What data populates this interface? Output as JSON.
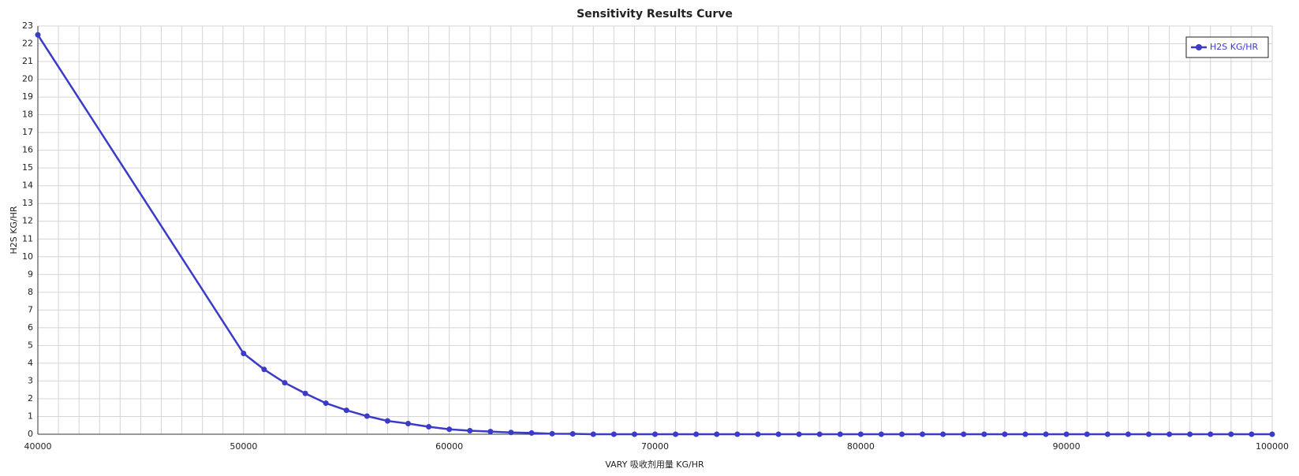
{
  "chart_data": {
    "type": "line",
    "title": "Sensitivity Results Curve",
    "x_label": "VARY   吸收剂用量 KG/HR",
    "y_label": "H2S KG/HR",
    "x": [
      40000,
      50000,
      51000,
      52000,
      53000,
      54000,
      55000,
      56000,
      57000,
      58000,
      59000,
      60000,
      61000,
      62000,
      63000,
      64000,
      65000,
      66000,
      67000,
      68000,
      69000,
      70000,
      71000,
      72000,
      73000,
      74000,
      75000,
      76000,
      77000,
      78000,
      79000,
      80000,
      81000,
      82000,
      83000,
      84000,
      85000,
      86000,
      87000,
      88000,
      89000,
      90000,
      91000,
      92000,
      93000,
      94000,
      95000,
      96000,
      97000,
      98000,
      99000,
      100000
    ],
    "series": [
      {
        "name": "H2S KG/HR",
        "color": "#3b3bc8",
        "values": [
          22.5,
          4.55,
          3.65,
          2.9,
          2.3,
          1.75,
          1.35,
          1.02,
          0.75,
          0.6,
          0.42,
          0.28,
          0.2,
          0.15,
          0.1,
          0.07,
          0.03,
          0.02,
          0,
          0,
          0,
          0,
          0,
          0,
          0,
          0,
          0,
          0,
          0,
          0,
          0,
          0,
          0,
          0,
          0,
          0,
          0,
          0,
          0,
          0,
          0,
          0,
          0,
          0,
          0,
          0,
          0,
          0,
          0,
          0,
          0,
          0
        ]
      }
    ],
    "xlim": [
      40000,
      100000
    ],
    "xticks": [
      40000,
      50000,
      60000,
      70000,
      80000,
      90000,
      100000
    ],
    "x_minor_ticks": [
      41000,
      42000,
      43000,
      44000,
      45000,
      46000,
      47000,
      48000,
      49000,
      51000,
      52000,
      53000,
      54000,
      55000,
      56000,
      57000,
      58000,
      59000,
      61000,
      62000,
      63000,
      64000,
      65000,
      66000,
      67000,
      68000,
      69000,
      71000,
      72000,
      73000,
      74000,
      75000,
      76000,
      77000,
      78000,
      79000,
      81000,
      82000,
      83000,
      84000,
      85000,
      86000,
      87000,
      88000,
      89000,
      91000,
      92000,
      93000,
      94000,
      95000,
      96000,
      97000,
      98000,
      99000
    ],
    "ylim": [
      0,
      23
    ],
    "yticks": [
      0,
      1,
      2,
      3,
      4,
      5,
      6,
      7,
      8,
      9,
      10,
      11,
      12,
      13,
      14,
      15,
      16,
      17,
      18,
      19,
      20,
      21,
      22,
      23
    ],
    "grid": true,
    "legend": "upper right"
  }
}
